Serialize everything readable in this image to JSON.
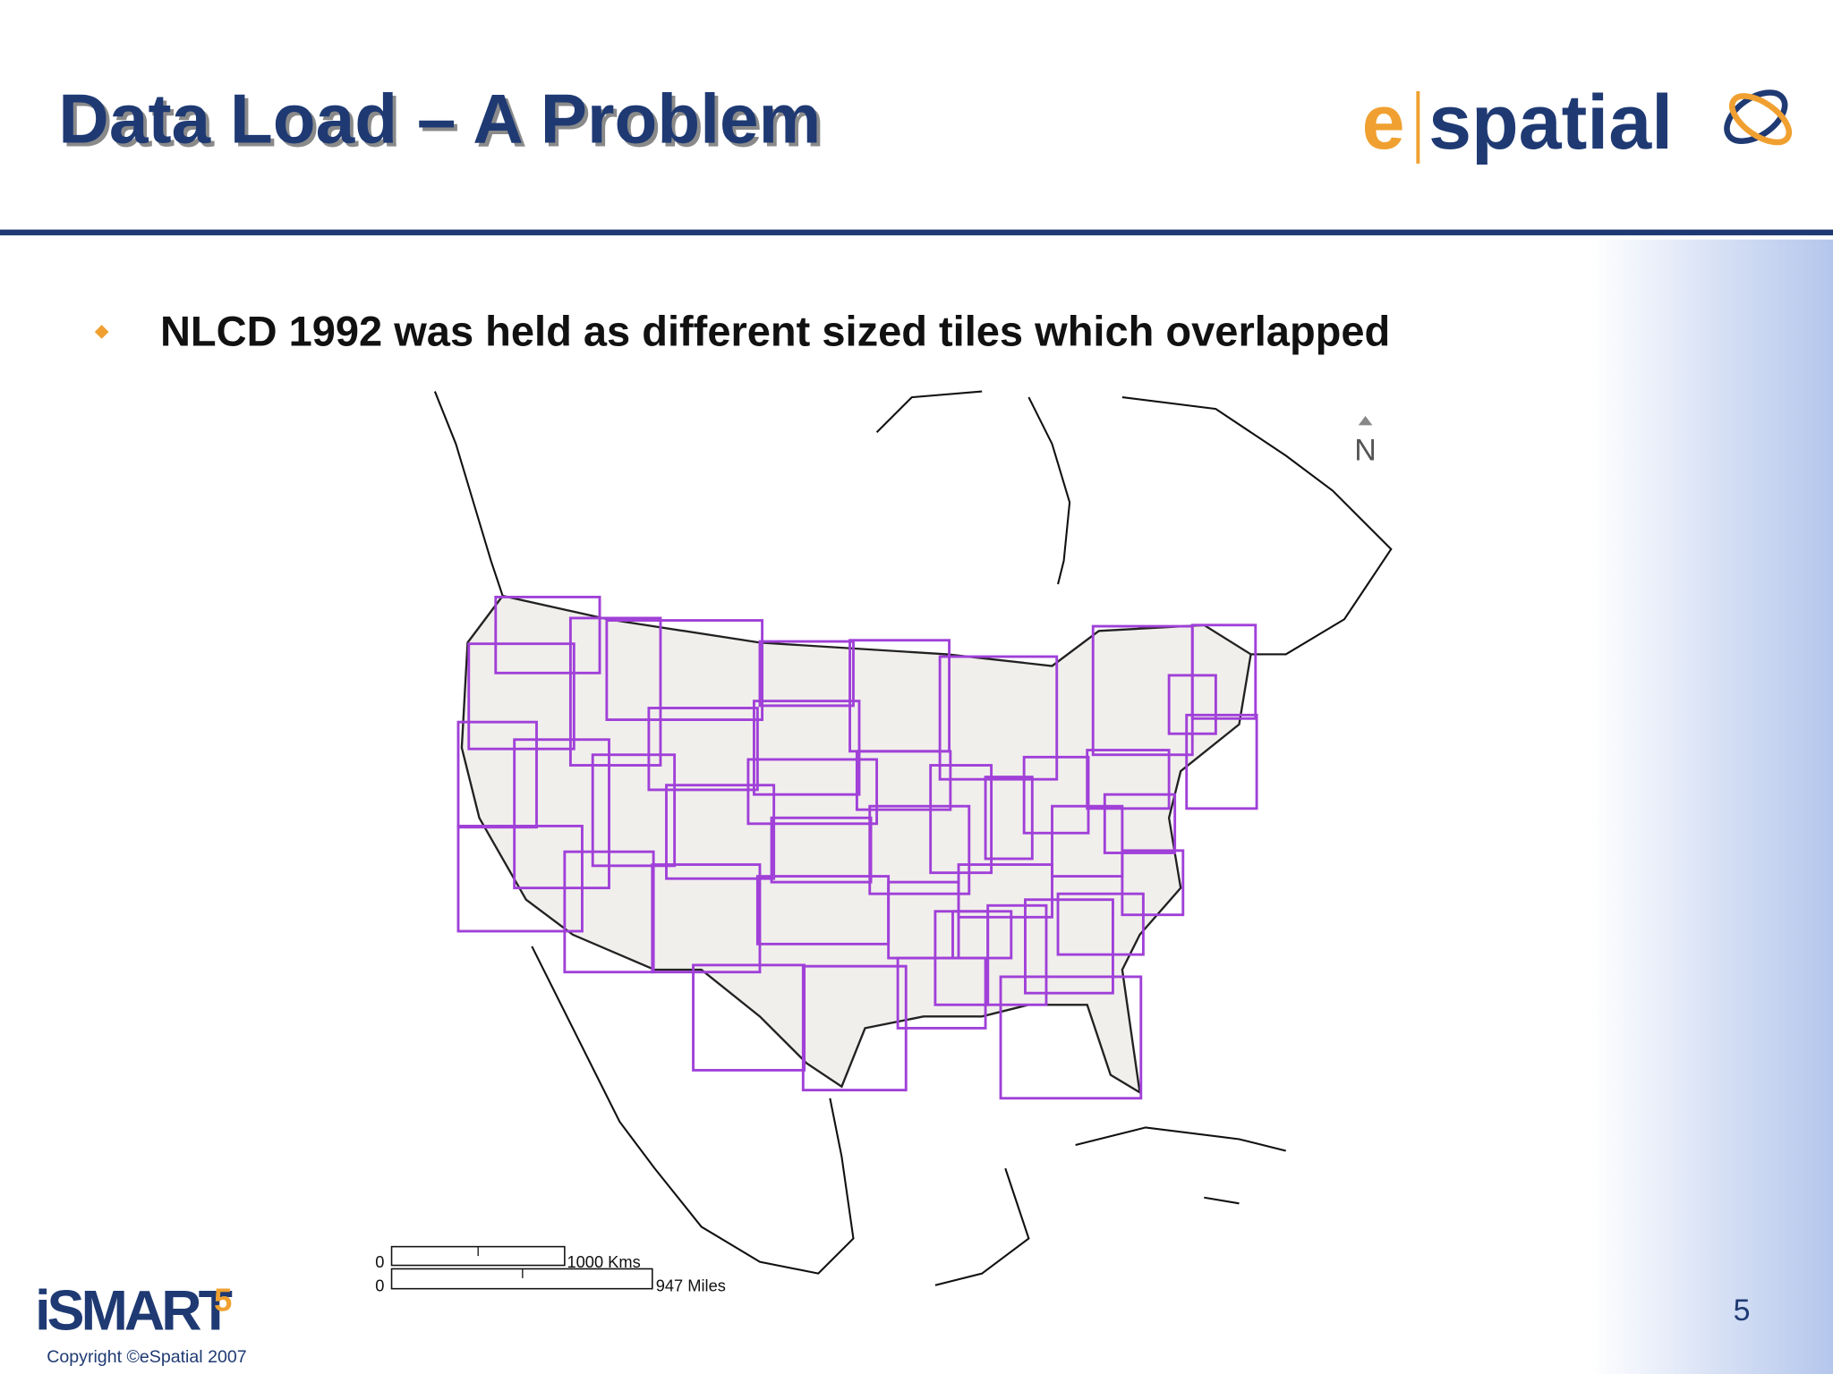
{
  "header": {
    "title": "Data Load – A Problem",
    "logo": {
      "prefix": "e",
      "name": "spatial"
    }
  },
  "bullets": [
    "NLCD 1992 was held as different sized tiles which overlapped"
  ],
  "map": {
    "north": "N",
    "scale": {
      "kms_zero": "0",
      "kms": "1000 Kms",
      "miles_zero": "0",
      "miles": "947 Miles"
    }
  },
  "footer": {
    "brand": "iSMART",
    "brand_version": "5",
    "copyright": "Copyright ©eSpatial 2007",
    "page_number": "5"
  }
}
